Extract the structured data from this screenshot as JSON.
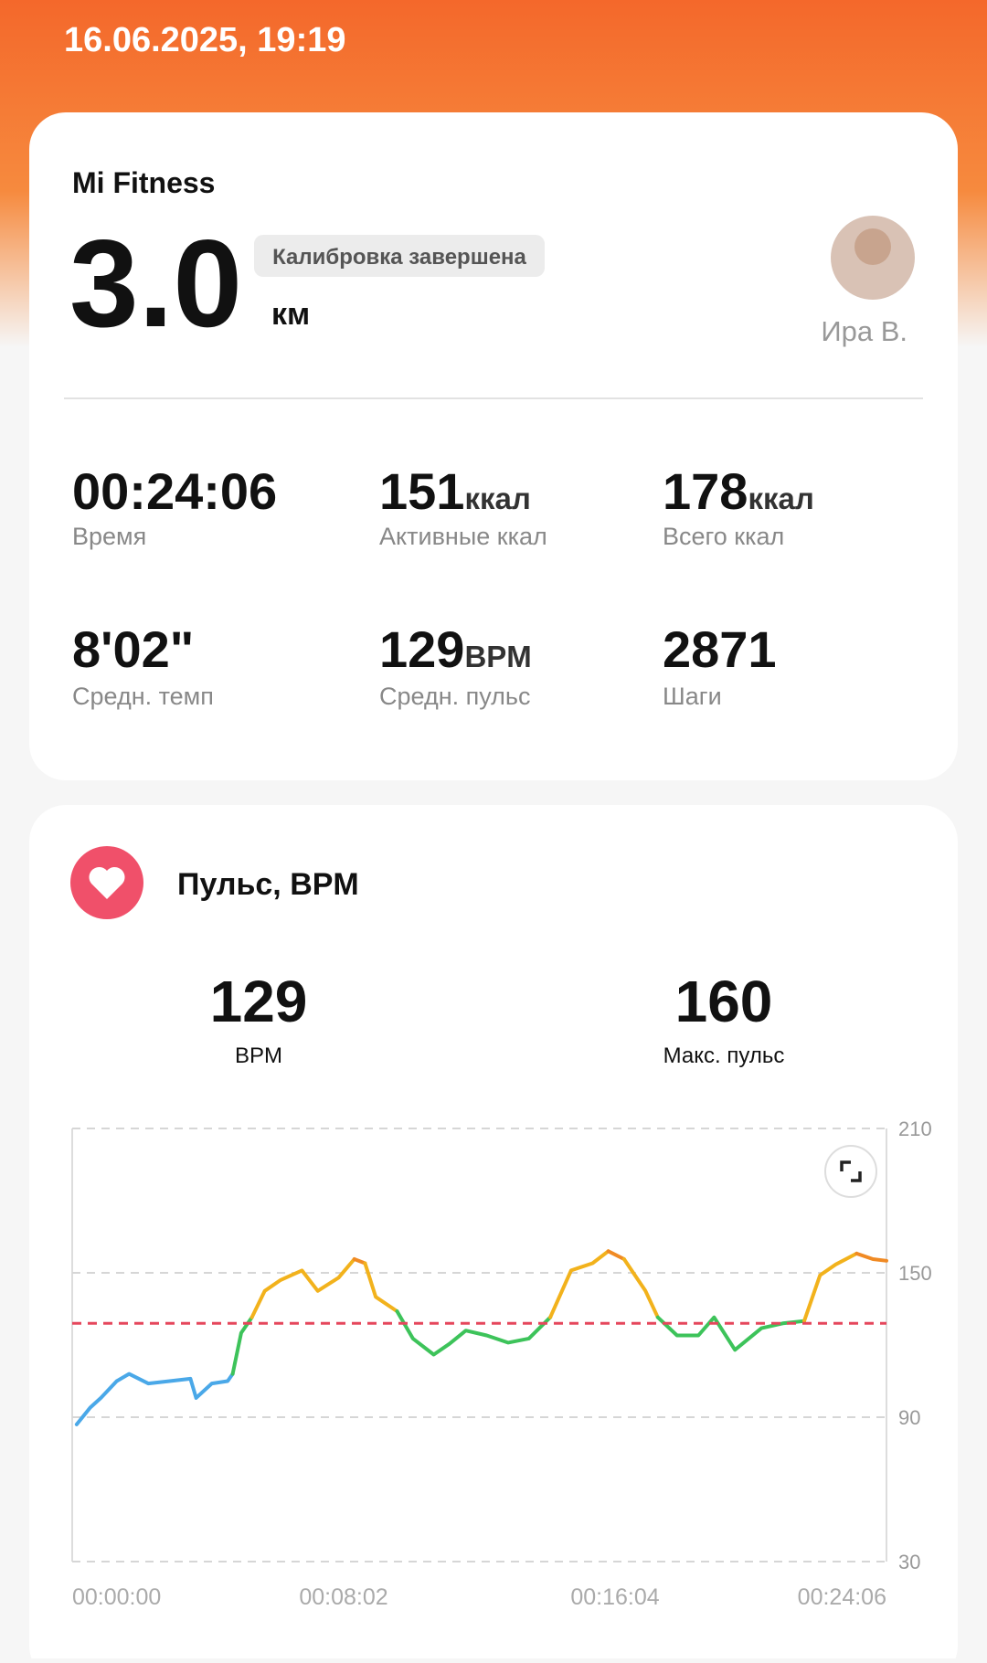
{
  "header": {
    "date": "16.06.2025, 19:19"
  },
  "summary_card": {
    "source": "Mi Fitness",
    "distance": "3.0",
    "distance_unit": "км",
    "badge": "Калибровка завершена",
    "user": "Ира В.",
    "stats": [
      {
        "value": "00:24:06",
        "label": "Время"
      },
      {
        "value": "151",
        "unit": "ккал",
        "label": "Активные ккал"
      },
      {
        "value": "178",
        "unit": "ккал",
        "label": "Всего ккал"
      },
      {
        "value": "8'02\"",
        "label": "Средн. темп"
      },
      {
        "value": "129",
        "unit": "BPM",
        "label": "Средн. пульс"
      },
      {
        "value": "2871",
        "label": "Шаги"
      }
    ]
  },
  "heart_card": {
    "title": "Пульс, BPM",
    "summary": [
      {
        "value": "129",
        "label": "BPM"
      },
      {
        "value": "160",
        "label": "Макс. пульс"
      }
    ]
  },
  "chart_data": {
    "type": "line",
    "xlim": [
      0,
      1446
    ],
    "xticks": [
      {
        "value": 0,
        "label": "00:00:00"
      },
      {
        "value": 482,
        "label": "00:08:02"
      },
      {
        "value": 964,
        "label": "00:16:04"
      },
      {
        "value": 1446,
        "label": "00:24:06"
      }
    ],
    "ylim": [
      30,
      210
    ],
    "yticks": [
      30,
      90,
      150,
      210
    ],
    "grid": true,
    "reference_line": {
      "value": 129,
      "color": "#e5475c"
    },
    "series": [
      {
        "color": "#4aa8e8",
        "x": [
          8,
          32,
          51,
          79,
          101,
          135,
          173,
          210,
          220,
          248,
          276,
          285
        ],
        "values": [
          87,
          94,
          98,
          105,
          108,
          104,
          105,
          106,
          98,
          104,
          105,
          108
        ]
      },
      {
        "color": "#3dc35a",
        "x": [
          285,
          300,
          319
        ],
        "values": [
          108,
          125,
          131.5
        ]
      },
      {
        "color": "#f2b21c",
        "x": [
          319,
          342,
          370,
          408,
          436,
          473,
          501
        ],
        "values": [
          131.5,
          142.5,
          147,
          151,
          142.5,
          148,
          155.7
        ]
      },
      {
        "color": "#f08a24",
        "x": [
          501,
          520
        ],
        "values": [
          155.7,
          154
        ]
      },
      {
        "color": "#f2b21c",
        "x": [
          520,
          539,
          577
        ],
        "values": [
          154,
          140,
          134
        ]
      },
      {
        "color": "#3dc35a",
        "x": [
          577,
          605,
          642,
          670,
          699,
          736,
          774,
          811,
          849
        ],
        "values": [
          134,
          122.7,
          116,
          120.5,
          126,
          124,
          121,
          122.7,
          131.5
        ]
      },
      {
        "color": "#f2b21c",
        "x": [
          849,
          886,
          924,
          952
        ],
        "values": [
          131.5,
          151,
          154,
          159
        ]
      },
      {
        "color": "#f08a24",
        "x": [
          952,
          980
        ],
        "values": [
          159,
          155.7
        ]
      },
      {
        "color": "#f2b21c",
        "x": [
          980,
          1018,
          1040
        ],
        "values": [
          155.7,
          142.5,
          131.5
        ]
      },
      {
        "color": "#3dc35a",
        "x": [
          1040,
          1074,
          1112,
          1140,
          1177,
          1224,
          1262,
          1300
        ],
        "values": [
          131.5,
          124,
          124,
          131.5,
          118,
          127,
          129,
          130
        ]
      },
      {
        "color": "#f2b21c",
        "x": [
          1300,
          1328,
          1356,
          1393
        ],
        "values": [
          130,
          149,
          153.5,
          158
        ]
      },
      {
        "color": "#f08a24",
        "x": [
          1393,
          1422,
          1446
        ],
        "values": [
          158,
          155.7,
          155
        ]
      }
    ]
  }
}
